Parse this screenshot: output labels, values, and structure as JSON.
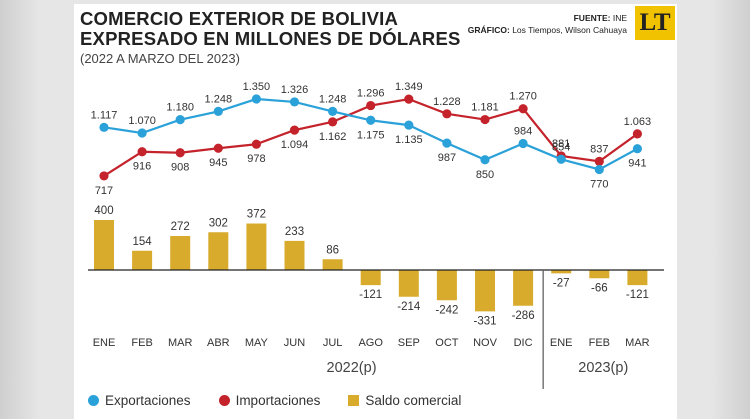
{
  "header": {
    "title_line1": "COMERCIO EXTERIOR DE BOLIVIA",
    "title_line2": "EXPRESADO EN MILLONES DE DÓLARES",
    "subtitle": "(2022 A MARZO DEL 2023)",
    "source_label": "FUENTE:",
    "source_value": "INE",
    "graphic_label": "GRÁFICO:",
    "graphic_value": "Los Tiempos, Wilson Cahuaya",
    "logo_text": "LT"
  },
  "colors": {
    "exports": "#2aa1d8",
    "imports": "#c4232b",
    "balance": "#d8ab2c",
    "logo": "#f1c200"
  },
  "legend": {
    "exports": "Exportaciones",
    "imports": "Importaciones",
    "balance": "Saldo comercial"
  },
  "chart_data": {
    "type": "line+bar",
    "categories": [
      "ENE",
      "FEB",
      "MAR",
      "ABR",
      "MAY",
      "JUN",
      "JUL",
      "AGO",
      "SEP",
      "OCT",
      "NOV",
      "DIC",
      "ENE",
      "FEB",
      "MAR"
    ],
    "years": [
      {
        "label": "2022(p)",
        "start": 0,
        "end": 11
      },
      {
        "label": "2023(p)",
        "start": 12,
        "end": 14
      }
    ],
    "series": [
      {
        "name": "Exportaciones",
        "type": "line",
        "values": [
          1117,
          1070,
          1180,
          1248,
          1350,
          1326,
          1248,
          1175,
          1135,
          987,
          850,
          984,
          854,
          770,
          941
        ],
        "labels": [
          "1.117",
          "1.070",
          "1.180",
          "1.248",
          "1.350",
          "1.326",
          "1.248",
          "1.175",
          "1.135",
          "987",
          "850",
          "984",
          "854",
          "770",
          "941"
        ]
      },
      {
        "name": "Importaciones",
        "type": "line",
        "values": [
          717,
          916,
          908,
          945,
          978,
          1094,
          1162,
          1296,
          1349,
          1228,
          1181,
          1270,
          881,
          837,
          1063
        ],
        "labels": [
          "717",
          "916",
          "908",
          "945",
          "978",
          "1.094",
          "1.162",
          "1.296",
          "1.349",
          "1.228",
          "1.181",
          "1.270",
          "881",
          "837",
          "1.063"
        ]
      },
      {
        "name": "Saldo comercial",
        "type": "bar",
        "values": [
          400,
          154,
          272,
          302,
          372,
          233,
          86,
          -121,
          -214,
          -242,
          -331,
          -286,
          -27,
          -66,
          -121
        ],
        "labels": [
          "400",
          "154",
          "272",
          "302",
          "372",
          "233",
          "86",
          "-121",
          "-214",
          "-242",
          "-331",
          "-286",
          "-27",
          "-66",
          "-121"
        ]
      }
    ]
  }
}
